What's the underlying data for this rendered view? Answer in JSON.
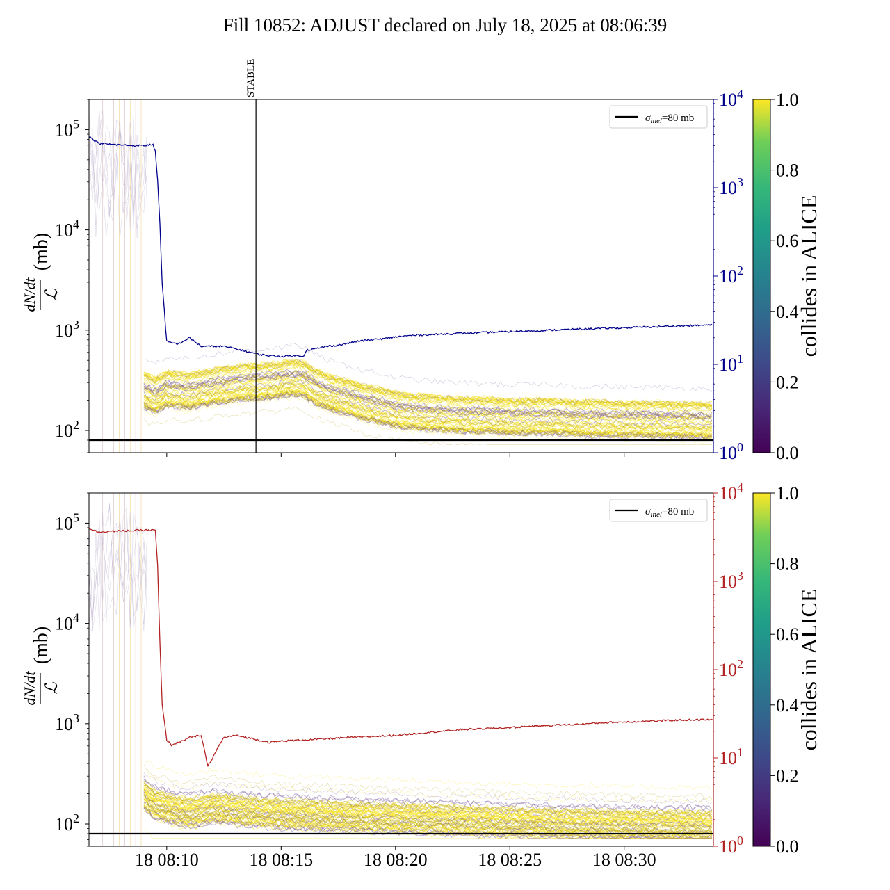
{
  "title": "Fill 10852: ADJUST declared on July 18, 2025 at 08:06:39",
  "colors": {
    "right_axis_top": "#00008b",
    "right_axis_bottom": "#b22222",
    "sigma_line": "#000000",
    "stable_line": "#000000",
    "band_yellow": "#f5e10f",
    "band_olive": "#b8a112",
    "band_purple": "#7a5a9c"
  },
  "colormap": "viridis",
  "time_axis": {
    "ticks": [
      {
        "t": 10,
        "label": "18 08:10"
      },
      {
        "t": 15,
        "label": "18 08:15"
      },
      {
        "t": 20,
        "label": "18 08:20"
      },
      {
        "t": 25,
        "label": "18 08:25"
      },
      {
        "t": 30,
        "label": "18 08:30"
      }
    ]
  },
  "chart_data": [
    {
      "type": "line",
      "panel": "top",
      "ylabel_fraction_num": "dN/dt",
      "ylabel_fraction_den": "ℒ",
      "ylabel_unit": "(mb)",
      "ylim": [
        60,
        200000
      ],
      "yscale": "log",
      "left_ticks": [
        {
          "v": 100,
          "base": "10",
          "exp": "2"
        },
        {
          "v": 1000,
          "base": "10",
          "exp": "3"
        },
        {
          "v": 10000,
          "base": "10",
          "exp": "4"
        },
        {
          "v": 100000,
          "base": "10",
          "exp": "5"
        }
      ],
      "right_ylim": [
        1,
        10000
      ],
      "right_ticks": [
        {
          "v": 1,
          "base": "10",
          "exp": "0"
        },
        {
          "v": 10,
          "base": "10",
          "exp": "1"
        },
        {
          "v": 100,
          "base": "10",
          "exp": "2"
        },
        {
          "v": 1000,
          "base": "10",
          "exp": "3"
        },
        {
          "v": 10000,
          "base": "10",
          "exp": "4"
        }
      ],
      "xlim": [
        6.6,
        33.9
      ],
      "sigma_inel": 80,
      "legend": {
        "sigma_symbol": "σ",
        "sigma_sub": "inel",
        "sigma_value": "=80 mb"
      },
      "stable_marker": {
        "t": 13.9,
        "label": "STABLE"
      },
      "luminosity_series": {
        "t": [
          6.6,
          7.0,
          7.5,
          8.0,
          8.5,
          9.0,
          9.4,
          9.5,
          9.6,
          9.7,
          9.8,
          9.9,
          9.95,
          10.0,
          10.5,
          11.0,
          11.5,
          12.0,
          12.5,
          13.0,
          13.5,
          14.0,
          14.5,
          15.0,
          15.5,
          16.0,
          16.1,
          16.5,
          17.0,
          17.5,
          18.0,
          18.5,
          19.0,
          19.5,
          20.0,
          20.5,
          21.0,
          22.0,
          23.0,
          24.0,
          25.0,
          26.0,
          27.0,
          28.0,
          29.0,
          30.0,
          31.0,
          32.0,
          33.0,
          33.9
        ],
        "y": [
          3800,
          3200,
          3100,
          3050,
          3000,
          3000,
          3100,
          2600,
          1200,
          400,
          80,
          40,
          25,
          18,
          17,
          20,
          16,
          16,
          16,
          15,
          14,
          13,
          12.5,
          12.3,
          12.5,
          12.5,
          14.5,
          15,
          16,
          16.5,
          17.5,
          18.5,
          19,
          19.5,
          20.5,
          21,
          21.5,
          22,
          22.5,
          23,
          23.5,
          24,
          24.5,
          25,
          25.5,
          26,
          26.5,
          27,
          27.5,
          28
        ]
      },
      "band_median": {
        "t": [
          9.0,
          9.5,
          10.0,
          10.5,
          11.0,
          11.5,
          12.0,
          12.5,
          13.0,
          13.5,
          14.0,
          14.5,
          15.0,
          15.5,
          16.0,
          16.5,
          17.0,
          17.5,
          18.0,
          18.5,
          19.0,
          20.0,
          21.0,
          22.0,
          23.0,
          24.0,
          25.0,
          26.0,
          27.0,
          28.0,
          29.0,
          30.0,
          31.0,
          32.0,
          33.0,
          33.9
        ],
        "y": [
          250,
          220,
          260,
          250,
          240,
          260,
          270,
          280,
          290,
          300,
          300,
          310,
          320,
          330,
          320,
          270,
          240,
          220,
          210,
          190,
          180,
          160,
          150,
          145,
          140,
          140,
          135,
          135,
          135,
          130,
          130,
          128,
          128,
          125,
          125,
          122
        ]
      }
    },
    {
      "type": "line",
      "panel": "bottom",
      "ylabel_fraction_num": "dN/dt",
      "ylabel_fraction_den": "ℒ",
      "ylabel_unit": "(mb)",
      "ylim": [
        60,
        200000
      ],
      "yscale": "log",
      "left_ticks": [
        {
          "v": 100,
          "base": "10",
          "exp": "2"
        },
        {
          "v": 1000,
          "base": "10",
          "exp": "3"
        },
        {
          "v": 10000,
          "base": "10",
          "exp": "4"
        },
        {
          "v": 100000,
          "base": "10",
          "exp": "5"
        }
      ],
      "right_ylim": [
        1,
        10000
      ],
      "right_ticks": [
        {
          "v": 1,
          "base": "10",
          "exp": "0"
        },
        {
          "v": 10,
          "base": "10",
          "exp": "1"
        },
        {
          "v": 100,
          "base": "10",
          "exp": "2"
        },
        {
          "v": 1000,
          "base": "10",
          "exp": "3"
        },
        {
          "v": 10000,
          "base": "10",
          "exp": "4"
        }
      ],
      "xlim": [
        6.6,
        33.9
      ],
      "sigma_inel": 80,
      "legend": {
        "sigma_symbol": "σ",
        "sigma_sub": "inel",
        "sigma_value": "=80 mb"
      },
      "luminosity_series": {
        "t": [
          6.6,
          7.0,
          7.5,
          8.0,
          8.5,
          9.0,
          9.5,
          9.6,
          9.7,
          9.8,
          9.9,
          10.0,
          10.2,
          10.5,
          11.0,
          11.5,
          11.8,
          12.0,
          12.3,
          12.5,
          13.0,
          13.5,
          14.0,
          14.5,
          15.0,
          16.0,
          17.0,
          18.0,
          19.0,
          20.0,
          21.0,
          22.0,
          23.0,
          24.0,
          25.0,
          26.0,
          27.0,
          28.0,
          29.0,
          30.0,
          31.0,
          32.0,
          33.0,
          33.9
        ],
        "y": [
          4000,
          3600,
          3700,
          3700,
          3750,
          3800,
          3800,
          1500,
          200,
          40,
          25,
          16,
          14,
          15,
          17,
          18,
          8,
          10,
          14,
          17,
          18,
          17,
          16,
          15,
          15.5,
          16,
          16.5,
          17,
          17.5,
          18,
          19,
          20,
          21,
          21.5,
          22,
          23,
          23.5,
          24,
          25,
          25.5,
          26,
          26.5,
          27,
          27
        ]
      },
      "band_median": {
        "t": [
          9.0,
          9.5,
          10.0,
          10.5,
          11.0,
          11.5,
          12.0,
          12.5,
          13.0,
          14.0,
          15.0,
          16.0,
          17.0,
          18.0,
          19.0,
          20.0,
          21.0,
          22.0,
          23.0,
          24.0,
          25.0,
          26.0,
          27.0,
          28.0,
          29.0,
          30.0,
          31.0,
          32.0,
          33.0,
          33.9
        ],
        "y": [
          200,
          160,
          150,
          140,
          135,
          140,
          150,
          145,
          140,
          135,
          130,
          128,
          125,
          122,
          120,
          118,
          116,
          114,
          112,
          110,
          108,
          106,
          105,
          104,
          103,
          102,
          101,
          100,
          100,
          99
        ]
      }
    }
  ],
  "colorbar": {
    "label": "collides in ALICE",
    "ticks": [
      {
        "v": 0.0,
        "label": "0.0"
      },
      {
        "v": 0.2,
        "label": "0.2"
      },
      {
        "v": 0.4,
        "label": "0.4"
      },
      {
        "v": 0.6,
        "label": "0.6"
      },
      {
        "v": 0.8,
        "label": "0.8"
      },
      {
        "v": 1.0,
        "label": "1.0"
      }
    ]
  }
}
